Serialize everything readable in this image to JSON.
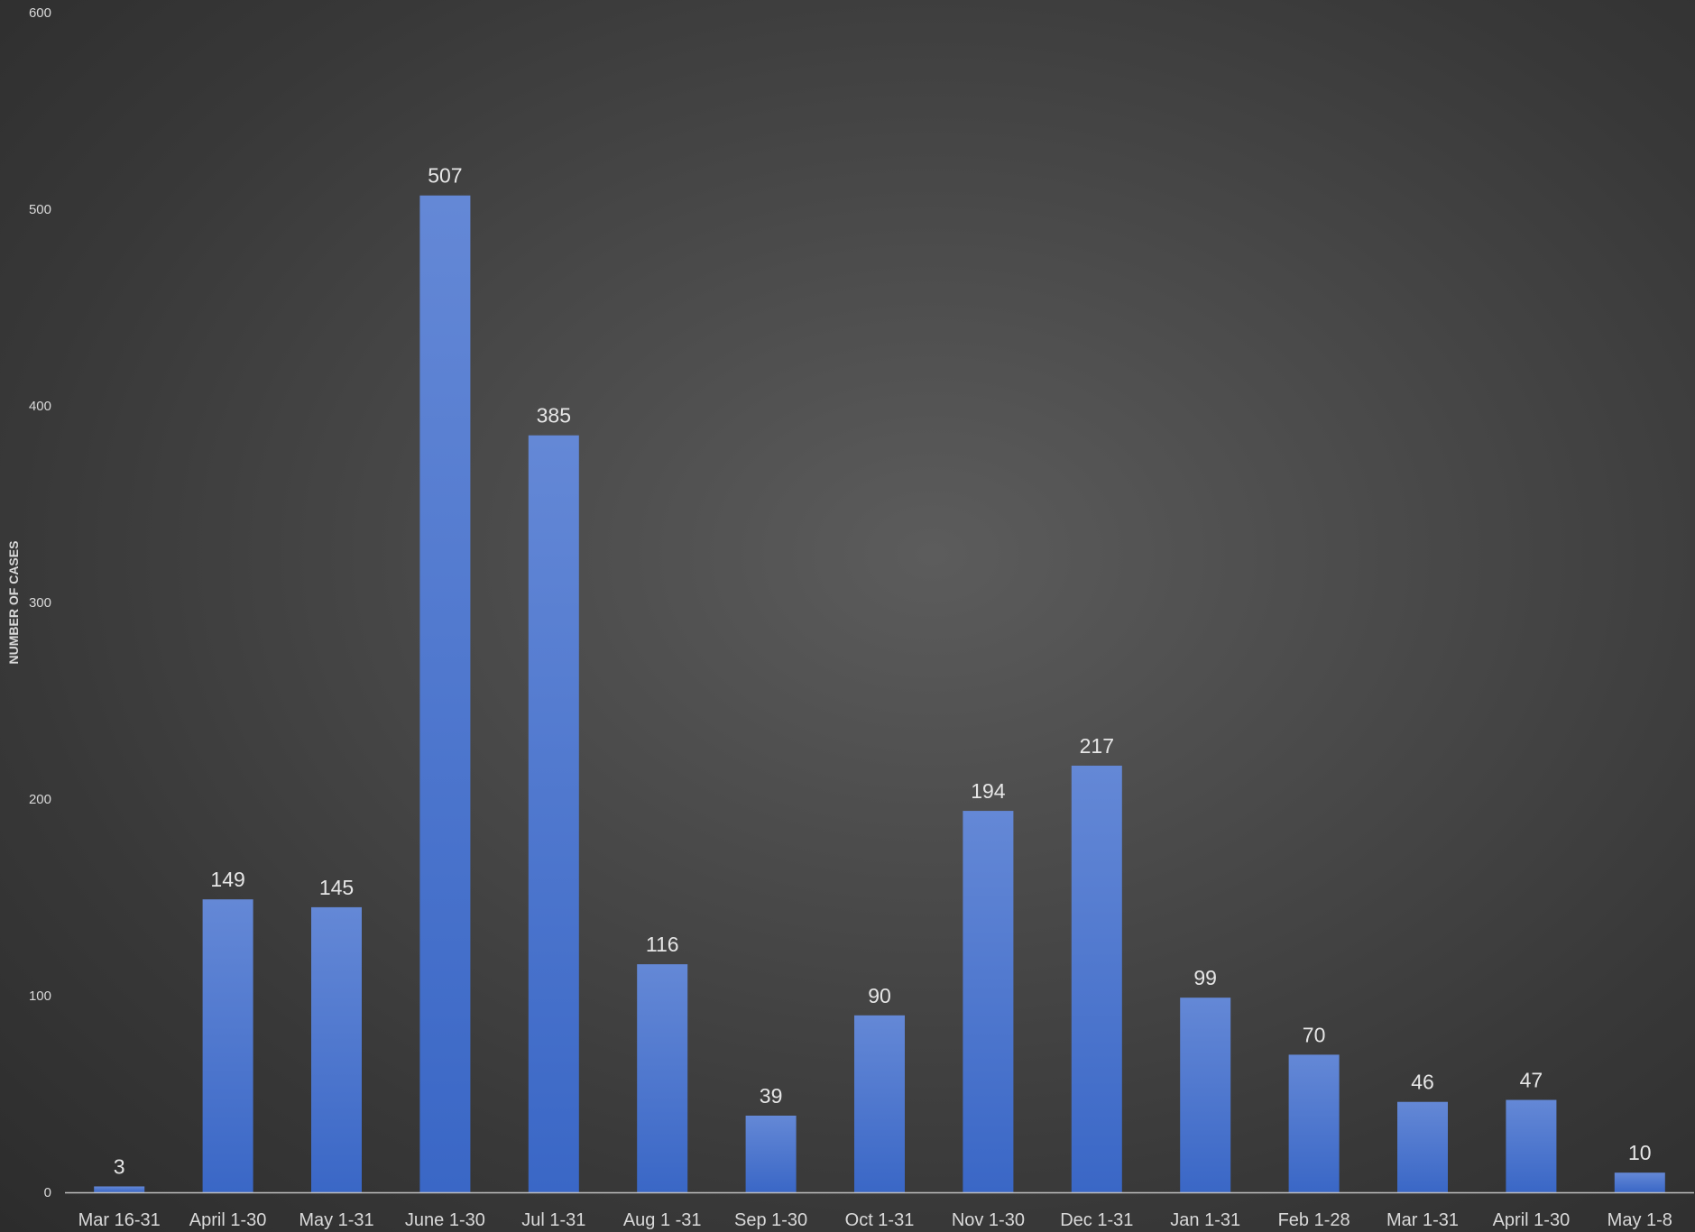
{
  "chart_data": {
    "type": "bar",
    "title": "",
    "xlabel": "",
    "ylabel": "NUMBER OF CASES",
    "ylim": [
      0,
      600
    ],
    "yticks": [
      0,
      100,
      200,
      300,
      400,
      500,
      600
    ],
    "grid": false,
    "legend": "none",
    "categories": [
      "Mar 16-31",
      "April 1-30",
      "May 1-31",
      "June 1-30",
      "Jul 1-31",
      "Aug 1 -31",
      "Sep 1-30",
      "Oct 1-31",
      "Nov 1-30",
      "Dec 1-31",
      "Jan 1-31",
      "Feb 1-28",
      "Mar 1-31",
      "April 1-30",
      "May 1-8"
    ],
    "values": [
      3,
      149,
      145,
      507,
      385,
      116,
      39,
      90,
      194,
      217,
      99,
      70,
      46,
      47,
      10
    ],
    "colors": {
      "bar_top": "#6488d6",
      "bar_bottom": "#3a67c6",
      "axis": "#bfbfbf",
      "text": "#d9d9d9"
    }
  }
}
